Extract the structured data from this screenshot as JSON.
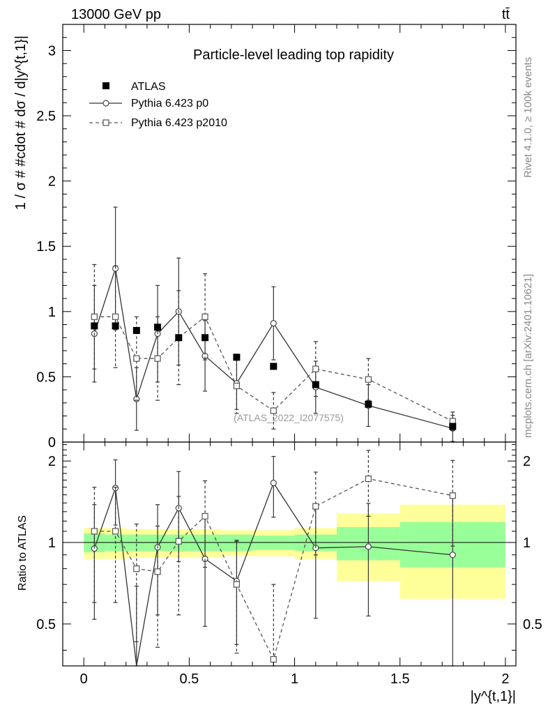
{
  "header": {
    "energy": "13000 GeV pp",
    "process": "tt̄",
    "title": "Particle-level leading top rapidity"
  },
  "side_labels": {
    "rivet": "Rivet 4.1.0, ≥ 100k events",
    "mcplots": "mcplots.cern.ch [arXiv:2401.10621]"
  },
  "watermark": "(ATLAS_2022_I2077575)",
  "legend": {
    "atlas": "ATLAS",
    "p0": "Pythia 6.423 p0",
    "p2010": "Pythia 6.423 p2010"
  },
  "chart_data": [
    {
      "type": "scatter",
      "panel": "main",
      "ylabel": "1 / σ # #cdot # dσ / d|y^{t,1}|",
      "xlim": [
        -0.1,
        2.05
      ],
      "ylim": [
        0,
        3.2
      ],
      "y_ticks": [
        0,
        0.5,
        1,
        1.5,
        2,
        2.5,
        3
      ],
      "y_tick_labels": [
        "0",
        "0.5",
        "1",
        "1.5",
        "2",
        "2.5",
        "3"
      ],
      "series": [
        {
          "name": "ATLAS",
          "x": [
            0.05,
            0.15,
            0.25,
            0.35,
            0.45,
            0.575,
            0.725,
            0.9,
            1.1,
            1.35,
            1.75
          ],
          "y": [
            0.89,
            0.89,
            0.855,
            0.88,
            0.8,
            0.8,
            0.65,
            0.58,
            0.44,
            0.29,
            0.12
          ]
        },
        {
          "name": "Pythia 6.423 p0",
          "x": [
            0.05,
            0.15,
            0.25,
            0.35,
            0.45,
            0.575,
            0.725,
            0.9,
            1.1,
            1.35,
            1.75
          ],
          "y": [
            0.83,
            1.33,
            0.33,
            0.83,
            1.0,
            0.66,
            0.45,
            0.91,
            0.42,
            0.28,
            0.105
          ],
          "err": [
            0.37,
            0.47,
            0.24,
            0.37,
            0.41,
            0.27,
            0.2,
            0.28,
            0.2,
            0.16,
            0.1
          ]
        },
        {
          "name": "Pythia 6.423 p2010",
          "x": [
            0.05,
            0.15,
            0.25,
            0.35,
            0.45,
            0.575,
            0.725,
            0.9,
            1.1,
            1.35,
            1.75
          ],
          "y": [
            0.96,
            0.96,
            0.64,
            0.64,
            0.8,
            0.96,
            0.43,
            0.24,
            0.56,
            0.48,
            0.16
          ],
          "err": [
            0.4,
            0.39,
            0.32,
            0.32,
            0.36,
            0.33,
            0.21,
            0.14,
            0.21,
            0.16,
            0.07
          ]
        }
      ]
    },
    {
      "type": "scatter",
      "panel": "ratio",
      "ylabel": "Ratio to ATLAS",
      "xlabel": "|y^{t,1}|",
      "xlim": [
        -0.1,
        2.05
      ],
      "ylim": [
        0.35,
        2.35
      ],
      "x_ticks": [
        0,
        0.5,
        1,
        1.5,
        2
      ],
      "x_tick_labels": [
        "0",
        "0.5",
        "1",
        "1.5",
        "2"
      ],
      "y_ticks": [
        0.5,
        1,
        2
      ],
      "y_tick_labels": [
        "0.5",
        "1",
        "2"
      ],
      "band_edges": [
        0.0,
        0.1,
        0.2,
        0.3,
        0.4,
        0.5,
        0.65,
        0.8,
        1.0,
        1.2,
        1.5,
        2.0
      ],
      "band_inner": [
        0.08,
        0.07,
        0.07,
        0.07,
        0.07,
        0.07,
        0.07,
        0.06,
        0.07,
        0.14,
        0.19
      ],
      "band_outer": [
        0.13,
        0.13,
        0.12,
        0.12,
        0.12,
        0.12,
        0.11,
        0.11,
        0.13,
        0.28,
        0.38
      ],
      "series": [
        {
          "name": "Pythia 6.423 p0",
          "x": [
            0.05,
            0.15,
            0.25,
            0.35,
            0.45,
            0.575,
            0.725,
            0.9,
            1.1,
            1.35,
            1.75
          ],
          "y": [
            0.95,
            1.59,
            0.34,
            0.96,
            1.34,
            0.87,
            0.72,
            1.66,
            0.955,
            0.965,
            0.9
          ],
          "err": [
            0.43,
            0.43,
            0.35,
            0.42,
            0.49,
            0.38,
            0.3,
            0.42,
            0.43,
            0.43,
            0.6
          ]
        },
        {
          "name": "Pythia 6.423 p2010",
          "x": [
            0.05,
            0.15,
            0.25,
            0.35,
            0.45,
            0.575,
            0.725,
            0.9,
            1.1,
            1.35,
            1.75
          ],
          "y": [
            1.1,
            1.1,
            0.8,
            0.78,
            1.01,
            1.25,
            0.7,
            0.37,
            1.36,
            1.72,
            1.49
          ],
          "err": [
            0.5,
            0.5,
            0.37,
            0.37,
            0.47,
            0.44,
            0.31,
            0.33,
            0.46,
            0.47,
            0.52
          ]
        }
      ]
    }
  ]
}
